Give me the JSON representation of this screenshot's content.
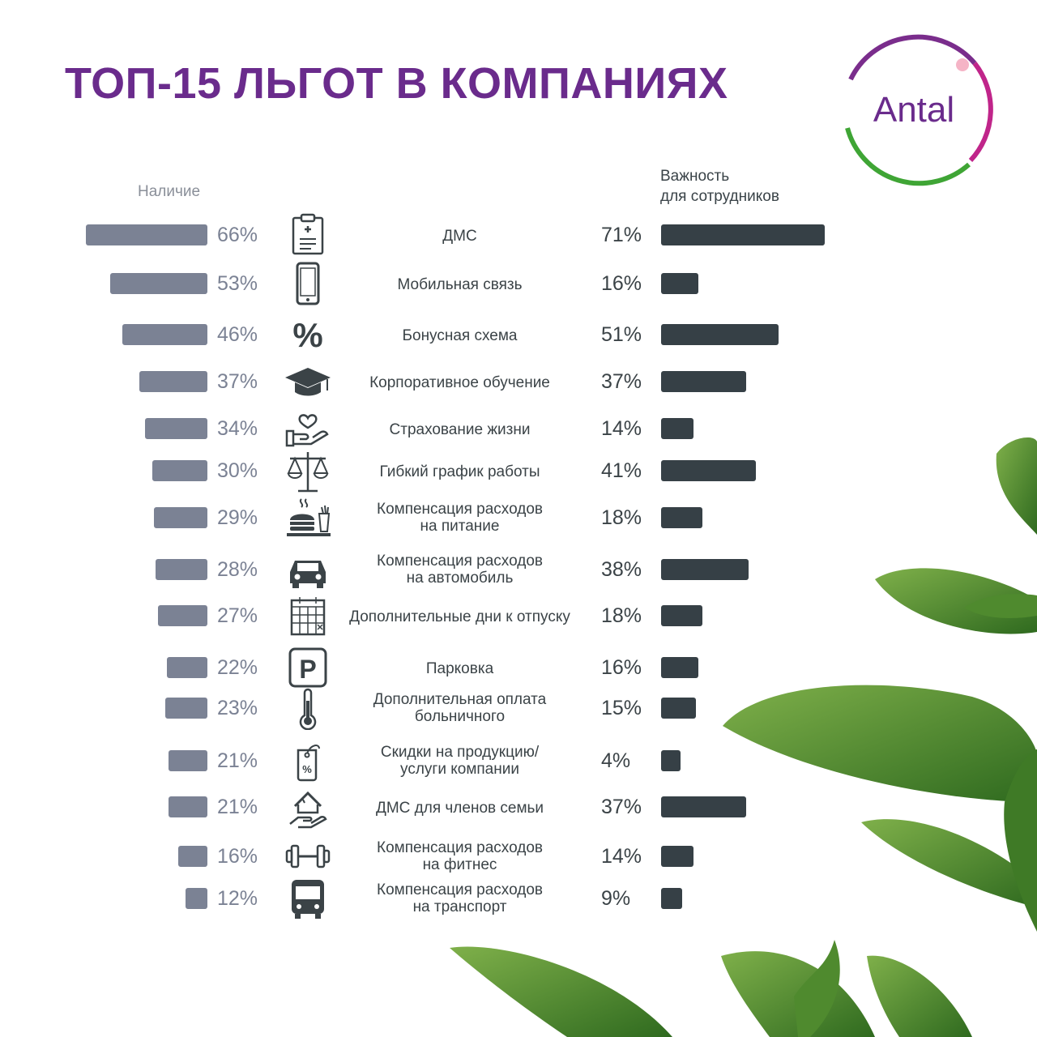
{
  "title": "ТОП-15 ЛЬГОТ В КОМПАНИЯХ",
  "logo": {
    "text": "Antal"
  },
  "colors": {
    "title": "#6a2b8c",
    "left_bar": "#7b8294",
    "right_bar": "#364046",
    "text": "#3b4347"
  },
  "chart_data": {
    "type": "bar",
    "subtype": "diverging-horizontal",
    "left_header": "Наличие",
    "right_header": "Важность\nдля сотрудников",
    "categories": [
      "ДМС",
      "Мобильная связь",
      "Бонусная схема",
      "Корпоративное обучение",
      "Страхование жизни",
      "Гибкий график работы",
      "Компенсация расходов\nна питание",
      "Компенсация расходов\nна автомобиль",
      "Дополнительные дни к отпуску",
      "Парковка",
      "Дополнительная оплата\nбольничного",
      "Скидки на продукцию/\nуслуги компании",
      "ДМС для членов семьи",
      "Компенсация расходов\nна фитнес",
      "Компенсация расходов\nна транспорт"
    ],
    "icons": [
      "clipboard-medical-icon",
      "mobile-phone-icon",
      "percent-icon",
      "graduation-cap-icon",
      "heart-hand-icon",
      "scales-icon",
      "food-tray-icon",
      "car-icon",
      "calendar-icon",
      "parking-icon",
      "thermometer-icon",
      "discount-tag-icon",
      "house-hand-icon",
      "dumbbell-icon",
      "bus-icon"
    ],
    "series": [
      {
        "name": "Наличие",
        "values": [
          66,
          53,
          46,
          37,
          34,
          30,
          29,
          28,
          27,
          22,
          23,
          21,
          21,
          16,
          12
        ],
        "labels": [
          "66%",
          "53%",
          "46%",
          "37%",
          "34%",
          "30%",
          "29%",
          "28%",
          "27%",
          "22%",
          "23%",
          "21%",
          "21%",
          "16%",
          "12%"
        ]
      },
      {
        "name": "Важность для сотрудников",
        "values": [
          71,
          16,
          51,
          37,
          14,
          41,
          18,
          38,
          18,
          16,
          15,
          4,
          37,
          14,
          9
        ],
        "labels": [
          "71%",
          "16%",
          "51%",
          "37%",
          "14%",
          "41%",
          "18%",
          "38%",
          "18%",
          "16%",
          "15%",
          "4%",
          "37%",
          "14%",
          "9%"
        ]
      }
    ]
  }
}
